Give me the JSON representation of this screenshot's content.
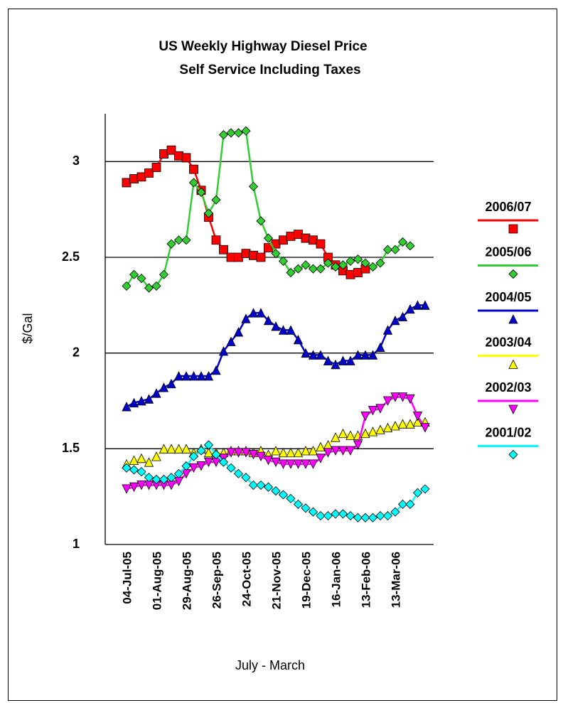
{
  "chart_data": {
    "type": "line",
    "title": "US Weekly Highway Diesel Price",
    "subtitle": "Self Service Including Taxes",
    "y_label": "$/Gal",
    "x_label": "July - March",
    "categories": [
      "04-Jul-05",
      null,
      null,
      null,
      "01-Aug-05",
      null,
      null,
      null,
      "29-Aug-05",
      null,
      null,
      null,
      "26-Sep-05",
      null,
      null,
      null,
      "24-Oct-05",
      null,
      null,
      null,
      "21-Nov-05",
      null,
      null,
      null,
      "19-Dec-05",
      null,
      null,
      null,
      "16-Jan-06",
      null,
      null,
      null,
      "13-Feb-06",
      null,
      null,
      null,
      "13-Mar-06",
      null,
      null,
      null,
      null
    ],
    "ylim": [
      1,
      3.25
    ],
    "yticks": [
      1,
      1.5,
      2,
      2.5,
      3
    ],
    "grid": true,
    "series": [
      {
        "name": "2006/07",
        "color": "#ff0000",
        "marker": "square",
        "values": [
          2.89,
          2.91,
          2.92,
          2.94,
          2.97,
          3.04,
          3.06,
          3.03,
          3.02,
          2.96,
          2.85,
          2.71,
          2.59,
          2.54,
          2.5,
          2.5,
          2.52,
          2.51,
          2.5,
          2.55,
          2.57,
          2.59,
          2.61,
          2.62,
          2.6,
          2.59,
          2.57,
          2.5,
          2.46,
          2.43,
          2.41,
          2.42,
          2.44,
          null,
          null,
          null,
          null,
          null,
          null,
          null,
          null
        ]
      },
      {
        "name": "2005/06",
        "color": "#33cc33",
        "marker": "diamond",
        "values": [
          2.35,
          2.41,
          2.39,
          2.34,
          2.35,
          2.41,
          2.57,
          2.59,
          2.59,
          2.89,
          2.84,
          2.73,
          2.8,
          3.14,
          3.15,
          3.15,
          3.16,
          2.87,
          2.69,
          2.6,
          2.52,
          2.48,
          2.42,
          2.44,
          2.46,
          2.44,
          2.44,
          2.47,
          2.45,
          2.46,
          2.48,
          2.49,
          2.47,
          2.45,
          2.47,
          2.54,
          2.54,
          2.58,
          2.56,
          null,
          null
        ]
      },
      {
        "name": "2004/05",
        "color": "#0000cc",
        "marker": "triangle-up",
        "values": [
          1.72,
          1.74,
          1.75,
          1.76,
          1.79,
          1.82,
          1.84,
          1.88,
          1.88,
          1.88,
          1.88,
          1.88,
          1.91,
          2.01,
          2.06,
          2.11,
          2.18,
          2.21,
          2.21,
          2.17,
          2.14,
          2.12,
          2.12,
          2.07,
          2.0,
          1.99,
          1.99,
          1.96,
          1.94,
          1.96,
          1.96,
          1.99,
          1.99,
          1.99,
          2.03,
          2.12,
          2.17,
          2.19,
          2.23,
          2.25,
          2.25
        ]
      },
      {
        "name": "2003/04",
        "color": "#ffff00",
        "marker": "triangle-up",
        "values": [
          1.42,
          1.44,
          1.45,
          1.43,
          1.46,
          1.5,
          1.5,
          1.5,
          1.5,
          1.48,
          1.5,
          1.48,
          1.48,
          1.48,
          1.49,
          1.49,
          1.49,
          1.48,
          1.49,
          1.47,
          1.49,
          1.48,
          1.48,
          1.48,
          1.49,
          1.49,
          1.51,
          1.52,
          1.56,
          1.58,
          1.57,
          1.57,
          1.58,
          1.59,
          1.6,
          1.61,
          1.62,
          1.63,
          1.63,
          1.64,
          1.64
        ]
      },
      {
        "name": "2002/03",
        "color": "#ff00ff",
        "marker": "triangle-down",
        "values": [
          1.29,
          1.3,
          1.31,
          1.31,
          1.31,
          1.31,
          1.31,
          1.33,
          1.37,
          1.4,
          1.41,
          1.43,
          1.43,
          1.45,
          1.48,
          1.48,
          1.48,
          1.47,
          1.46,
          1.44,
          1.43,
          1.42,
          1.42,
          1.42,
          1.42,
          1.42,
          1.45,
          1.48,
          1.49,
          1.49,
          1.49,
          1.52,
          1.67,
          1.7,
          1.71,
          1.75,
          1.77,
          1.77,
          1.76,
          1.67,
          1.61
        ]
      },
      {
        "name": "2001/02",
        "color": "#00ffff",
        "marker": "diamond",
        "values": [
          1.4,
          1.39,
          1.38,
          1.35,
          1.34,
          1.34,
          1.35,
          1.37,
          1.41,
          1.46,
          1.49,
          1.52,
          1.47,
          1.43,
          1.4,
          1.37,
          1.35,
          1.31,
          1.31,
          1.3,
          1.28,
          1.26,
          1.24,
          1.21,
          1.19,
          1.17,
          1.15,
          1.15,
          1.16,
          1.16,
          1.15,
          1.14,
          1.14,
          1.14,
          1.15,
          1.15,
          1.17,
          1.21,
          1.21,
          1.27,
          1.29
        ]
      }
    ]
  }
}
